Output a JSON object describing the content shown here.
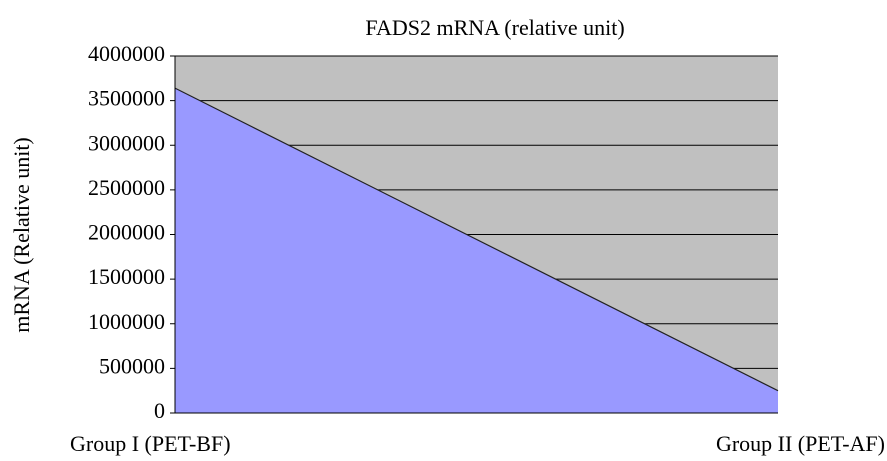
{
  "chart_data": {
    "type": "area",
    "title": "FADS2 mRNA (relative unit)",
    "y_label": "mRNA (Relative unit)",
    "categories": [
      "Group I (PET-BF)",
      "Group II (PET-AF)"
    ],
    "values": [
      3640000,
      250000
    ],
    "color": "#9999ff",
    "ylim": [
      0,
      4000000
    ],
    "yticks": [
      0,
      500000,
      1000000,
      1500000,
      2000000,
      2500000,
      3000000,
      3500000,
      4000000
    ],
    "grid": true
  }
}
